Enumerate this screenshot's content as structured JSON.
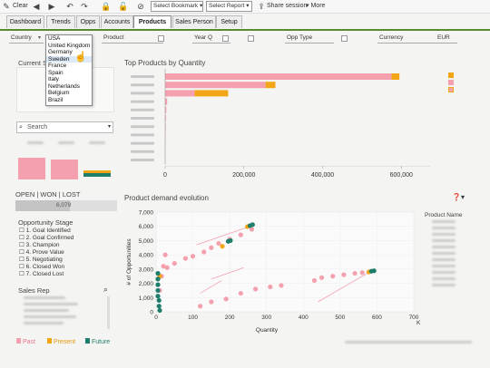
{
  "toolbar": {
    "clear_label": "Clear",
    "bookmark_select": "Select Bookmark",
    "report_select": "Select Report",
    "share_label": "Share session",
    "more_label": "More"
  },
  "tabs": [
    {
      "label": "Dashboard",
      "active": false
    },
    {
      "label": "Trends",
      "active": false
    },
    {
      "label": "Opps",
      "active": false
    },
    {
      "label": "Accounts",
      "active": false
    },
    {
      "label": "Products",
      "active": true
    },
    {
      "label": "Sales Person",
      "active": false
    },
    {
      "label": "Setup",
      "active": false
    }
  ],
  "filters": {
    "country_label": "Country",
    "country_value": "USA",
    "product_label": "Product",
    "year_label": "Year Q",
    "opp_type_label": "Opp Type",
    "currency_label": "Currency",
    "currency_value": "EUR"
  },
  "country_dropdown": [
    "USA",
    "United Kingdom",
    "Germany",
    "Sweden",
    "France",
    "Spain",
    "Italy",
    "Netherlands",
    "Belgium",
    "Brazil"
  ],
  "left_panel": {
    "current_title": "Current S",
    "search_placeholder": "Search",
    "status_line": "OPEN | WON | LOST",
    "won_value": "6,079",
    "stage_title": "Opportunity Stage",
    "stages": [
      "1. Goal Identified",
      "2. Goal Confirmed",
      "3. Champion",
      "4. Prove Value",
      "5. Negotiating",
      "6. Closed Won",
      "7. Closed Lost"
    ],
    "rep_title": "Sales Rep"
  },
  "legend_bottom": {
    "past": "Past",
    "present": "Present",
    "future": "Future",
    "past_color": "#f4a0ae",
    "present_color": "#f2a515",
    "future_color": "#1e7d6b"
  },
  "top_products_title": "Top Products by Quantity",
  "demand_title": "Product demand evolution",
  "product_name_label": "Product Name",
  "chart_data": [
    {
      "type": "bar",
      "orientation": "horizontal",
      "title": "Top Products by Quantity",
      "xlim": [
        0,
        650000
      ],
      "xticks": [
        "0",
        "200,000",
        "400,000",
        "600,000"
      ],
      "series": [
        {
          "name": "Past",
          "values": [
            575000,
            255000,
            75000,
            5000,
            3000,
            2000,
            1500,
            1000,
            800,
            600,
            400
          ],
          "color": "#f4a0ae"
        },
        {
          "name": "Present",
          "values": [
            20000,
            25000,
            85000,
            0,
            0,
            0,
            0,
            0,
            0,
            0,
            0
          ],
          "color": "#f2a515"
        }
      ]
    },
    {
      "type": "scatter",
      "title": "Product demand evolution",
      "xlabel": "Quantity",
      "ylabel": "# of Opportunities",
      "xlim": [
        0,
        700
      ],
      "ylim": [
        0,
        7000
      ],
      "xticks": [
        0,
        100,
        200,
        300,
        400,
        500,
        600,
        700
      ],
      "yticks": [
        "0",
        "1,000",
        "2,000",
        "3,000",
        "4,000",
        "5,000",
        "6,000",
        "7,000"
      ],
      "x_unit": "K",
      "series": [
        {
          "name": "Past",
          "color": "#f4a0ae",
          "points": [
            [
              120,
              400
            ],
            [
              150,
              700
            ],
            [
              190,
              900
            ],
            [
              230,
              1300
            ],
            [
              270,
              1600
            ],
            [
              310,
              1750
            ],
            [
              340,
              1850
            ],
            [
              430,
              2200
            ],
            [
              450,
              2400
            ],
            [
              480,
              2500
            ],
            [
              510,
              2600
            ],
            [
              540,
              2700
            ],
            [
              560,
              2750
            ],
            [
              30,
              3100
            ],
            [
              50,
              3400
            ],
            [
              80,
              3750
            ],
            [
              100,
              3900
            ],
            [
              130,
              4200
            ],
            [
              150,
              4500
            ],
            [
              170,
              4800
            ],
            [
              200,
              5100
            ],
            [
              230,
              5400
            ],
            [
              260,
              5800
            ],
            [
              10,
              1500
            ],
            [
              15,
              2500
            ],
            [
              20,
              3200
            ],
            [
              25,
              4000
            ]
          ]
        },
        {
          "name": "Present",
          "color": "#f2a515",
          "points": [
            [
              248,
              5980
            ],
            [
              578,
              2800
            ],
            [
              180,
              4600
            ],
            [
              10,
              2500
            ]
          ]
        },
        {
          "name": "Future",
          "color": "#1e7d6b",
          "points": [
            [
              255,
              6050
            ],
            [
              262,
              6120
            ],
            [
              585,
              2850
            ],
            [
              592,
              2880
            ],
            [
              196,
              4950
            ],
            [
              202,
              5000
            ],
            [
              5,
              2700
            ],
            [
              5,
              2300
            ],
            [
              5,
              1900
            ],
            [
              5,
              1500
            ],
            [
              5,
              1100
            ],
            [
              8,
              800
            ],
            [
              8,
              400
            ],
            [
              10,
              100
            ]
          ]
        }
      ]
    }
  ]
}
